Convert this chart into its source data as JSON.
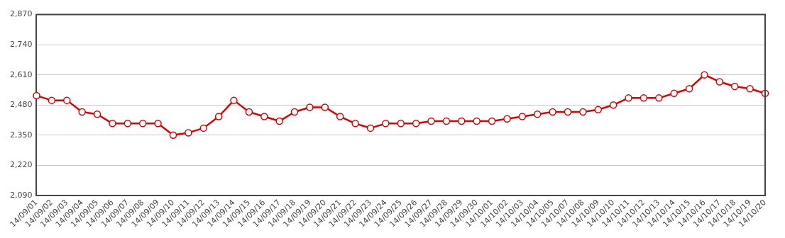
{
  "chart_data": {
    "type": "line",
    "categories": [
      "14/09/01",
      "14/09/02",
      "14/09/03",
      "14/09/04",
      "14/09/05",
      "14/09/06",
      "14/09/07",
      "14/09/08",
      "14/09/09",
      "14/09/10",
      "14/09/11",
      "14/09/12",
      "14/09/13",
      "14/09/14",
      "14/09/15",
      "14/09/16",
      "14/09/17",
      "14/09/18",
      "14/09/19",
      "14/09/20",
      "14/09/21",
      "14/09/22",
      "14/09/23",
      "14/09/24",
      "14/09/25",
      "14/09/26",
      "14/09/27",
      "14/09/28",
      "14/09/29",
      "14/09/30",
      "14/10/01",
      "14/10/02",
      "14/10/03",
      "14/10/04",
      "14/10/05",
      "14/10/07",
      "14/10/08",
      "14/10/09",
      "14/10/10",
      "14/10/11",
      "14/10/12",
      "14/10/13",
      "14/10/14",
      "14/10/15",
      "14/10/16",
      "14/10/17",
      "14/10/18",
      "14/10/19",
      "14/10/20"
    ],
    "series": [
      {
        "color": "#dd0000",
        "values": [
          2520,
          2500,
          2500,
          2450,
          2440,
          2400,
          2400,
          2400,
          2400,
          2350,
          2360,
          2380,
          2430,
          2500,
          2450,
          2430,
          2410,
          2450,
          2470,
          2470,
          2430,
          2400,
          2380,
          2400,
          2400,
          2400,
          2410,
          2410,
          2410,
          2410,
          2410,
          2420,
          2430,
          2440,
          2450,
          2450,
          2450,
          2460,
          2480,
          2510,
          2510,
          2510,
          2530,
          2550,
          2610,
          2580,
          2560,
          2550,
          2530
        ]
      }
    ],
    "ylim": [
      2090,
      2870
    ],
    "yticks": [
      {
        "value": 2090,
        "label": "2,090"
      },
      {
        "value": 2220,
        "label": "2,220"
      },
      {
        "value": 2350,
        "label": "2,350"
      },
      {
        "value": 2480,
        "label": "2,480"
      },
      {
        "value": 2610,
        "label": "2,610"
      },
      {
        "value": 2740,
        "label": "2,740"
      },
      {
        "value": 2870,
        "label": "2,870"
      }
    ],
    "grid": "y",
    "legend": false,
    "marker": "circle",
    "line_style": "solid"
  }
}
